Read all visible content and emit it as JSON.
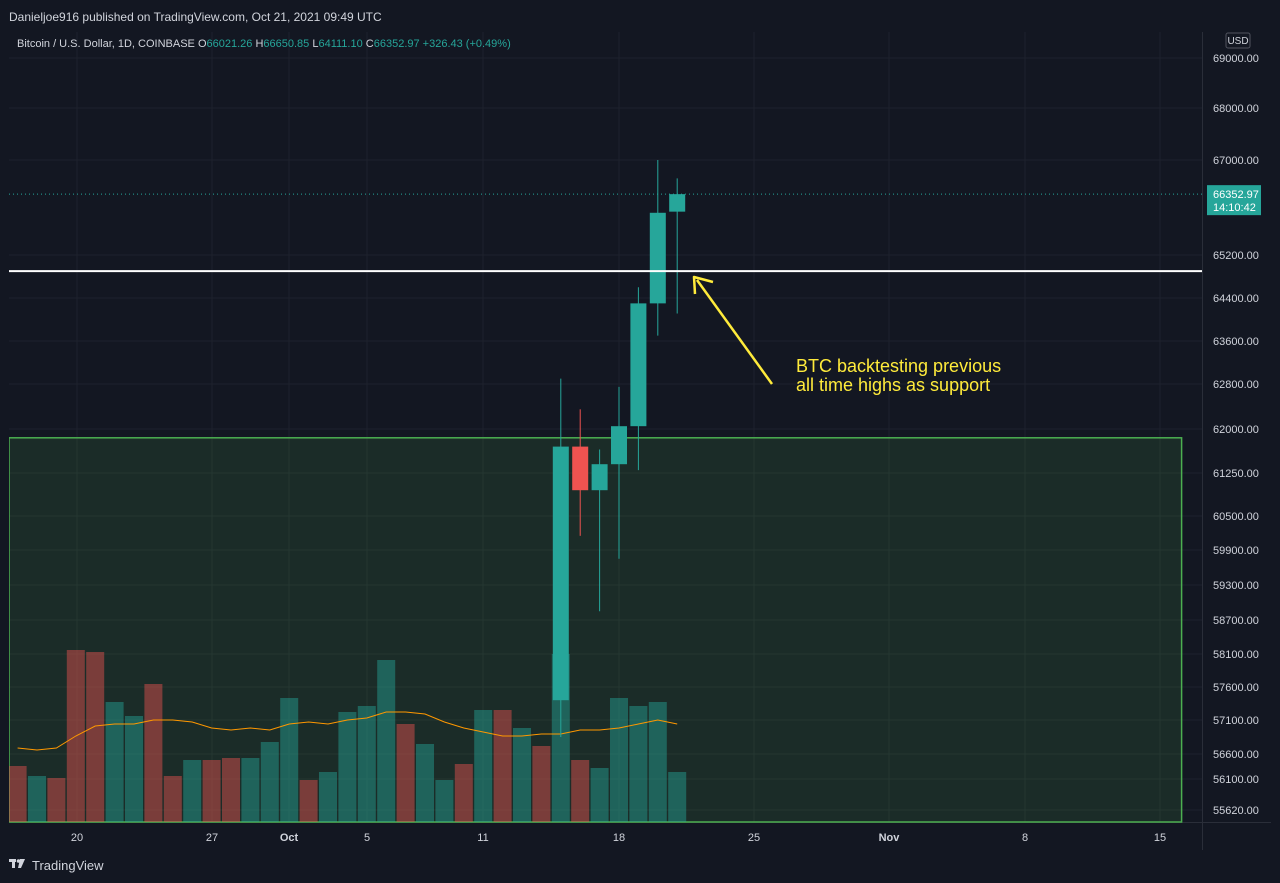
{
  "header": {
    "publisher_line": "Danieljoe916 published on TradingView.com, Oct 21, 2021 09:49 UTC"
  },
  "footer": {
    "brand": "TradingView"
  },
  "colors": {
    "background": "#131722",
    "up": "#26a69a",
    "down": "#ef5350",
    "zone_border": "#4caf50",
    "annotation": "#ffeb3b",
    "ma_line": "#ff9800"
  },
  "chart_data": {
    "type": "candlestick",
    "title": "Bitcoin / U.S. Dollar, 1D, COINBASE",
    "legend": {
      "symbol": "Bitcoin / U.S. Dollar, 1D, COINBASE",
      "open_label": "O",
      "open": "66021.26",
      "high_label": "H",
      "high": "66650.85",
      "low_label": "L",
      "low": "64111.10",
      "close_label": "C",
      "close": "66352.97",
      "change": "+326.43 (+0.49%)"
    },
    "currency": "USD",
    "last_price": "66352.97",
    "countdown": "14:10:42",
    "y_ticks": [
      "69000.00",
      "68000.00",
      "67000.00",
      "65200.00",
      "64400.00",
      "63600.00",
      "62800.00",
      "62000.00",
      "61250.00",
      "60500.00",
      "59900.00",
      "59300.00",
      "58700.00",
      "58100.00",
      "57600.00",
      "57100.00",
      "56600.00",
      "56100.00",
      "55620.00"
    ],
    "x_ticks": [
      "20",
      "27",
      "Oct",
      "5",
      "11",
      "18",
      "25",
      "Nov",
      "8",
      "15"
    ],
    "candles": [
      {
        "date": "2021-10-15",
        "open": 57400,
        "high": 62900,
        "low": 56850,
        "close": 61700
      },
      {
        "date": "2021-10-16",
        "open": 61700,
        "high": 62350,
        "low": 60150,
        "close": 60950
      },
      {
        "date": "2021-10-17",
        "open": 60950,
        "high": 61650,
        "low": 58850,
        "close": 61400
      },
      {
        "date": "2021-10-18",
        "open": 61400,
        "high": 62750,
        "low": 59750,
        "close": 62050
      },
      {
        "date": "2021-10-19",
        "open": 62050,
        "high": 64600,
        "low": 61300,
        "close": 64300
      },
      {
        "date": "2021-10-20",
        "open": 64300,
        "high": 67000,
        "low": 63700,
        "close": 66000
      },
      {
        "date": "2021-10-21",
        "open": 66021.26,
        "high": 66650.85,
        "low": 64111.1,
        "close": 66352.97
      }
    ],
    "volume_bars": [
      {
        "dir": "down",
        "v": 0.28
      },
      {
        "dir": "up",
        "v": 0.23
      },
      {
        "dir": "down",
        "v": 0.22
      },
      {
        "dir": "down",
        "v": 0.86
      },
      {
        "dir": "down",
        "v": 0.85
      },
      {
        "dir": "up",
        "v": 0.6
      },
      {
        "dir": "up",
        "v": 0.53
      },
      {
        "dir": "down",
        "v": 0.69
      },
      {
        "dir": "down",
        "v": 0.23
      },
      {
        "dir": "up",
        "v": 0.31
      },
      {
        "dir": "down",
        "v": 0.31
      },
      {
        "dir": "down",
        "v": 0.32
      },
      {
        "dir": "up",
        "v": 0.32
      },
      {
        "dir": "up",
        "v": 0.4
      },
      {
        "dir": "up",
        "v": 0.62
      },
      {
        "dir": "down",
        "v": 0.21
      },
      {
        "dir": "up",
        "v": 0.25
      },
      {
        "dir": "up",
        "v": 0.55
      },
      {
        "dir": "up",
        "v": 0.58
      },
      {
        "dir": "up",
        "v": 0.81
      },
      {
        "dir": "down",
        "v": 0.49
      },
      {
        "dir": "up",
        "v": 0.39
      },
      {
        "dir": "up",
        "v": 0.21
      },
      {
        "dir": "down",
        "v": 0.29
      },
      {
        "dir": "up",
        "v": 0.56
      },
      {
        "dir": "down",
        "v": 0.56
      },
      {
        "dir": "up",
        "v": 0.47
      },
      {
        "dir": "down",
        "v": 0.38
      },
      {
        "dir": "up",
        "v": 0.84
      },
      {
        "dir": "down",
        "v": 0.31
      },
      {
        "dir": "up",
        "v": 0.27
      },
      {
        "dir": "up",
        "v": 0.62
      },
      {
        "dir": "up",
        "v": 0.58
      },
      {
        "dir": "up",
        "v": 0.6
      },
      {
        "dir": "up",
        "v": 0.25
      }
    ],
    "volume_ma": [
      0.37,
      0.36,
      0.37,
      0.43,
      0.48,
      0.49,
      0.49,
      0.51,
      0.51,
      0.5,
      0.47,
      0.46,
      0.47,
      0.46,
      0.49,
      0.5,
      0.49,
      0.51,
      0.52,
      0.55,
      0.55,
      0.54,
      0.5,
      0.47,
      0.45,
      0.43,
      0.43,
      0.44,
      0.44,
      0.46,
      0.46,
      0.47,
      0.49,
      0.51,
      0.49
    ],
    "horizontal_line": {
      "price": 64900,
      "color": "#ffffff"
    },
    "zone": {
      "top_price": 61850,
      "until": "2021-11-16"
    },
    "annotation": {
      "line1": "BTC backtesting previous",
      "line2": "all time highs as support"
    }
  }
}
